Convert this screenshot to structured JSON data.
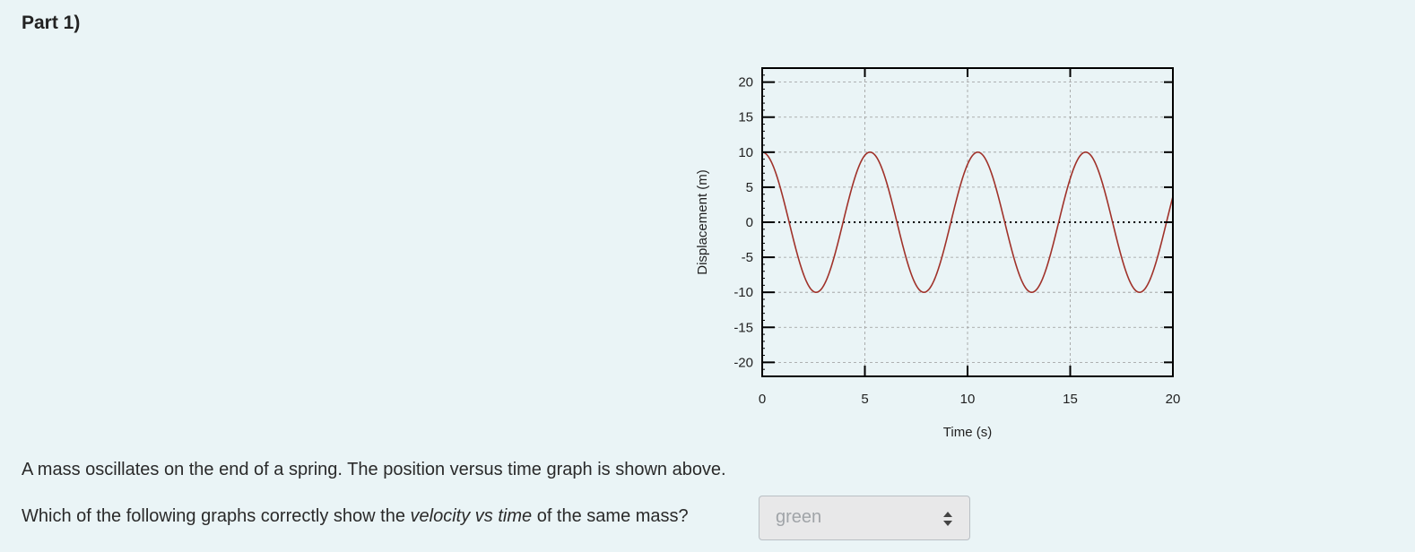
{
  "part": {
    "title": "Part 1)"
  },
  "question": {
    "statement": "A mass oscillates on the end of a spring. The position versus time graph is shown above.",
    "prompt_before": "Which of the following graphs correctly show the ",
    "prompt_emphasis": "velocity vs time",
    "prompt_after": " of the same mass?"
  },
  "select": {
    "value": "green",
    "icon": "updown-arrows-icon"
  },
  "colors": {
    "curve": "#a0322a",
    "grid": "#9a9a9a",
    "zero_line": "#000000",
    "background": "#eaf4f6"
  },
  "chart_data": {
    "type": "line",
    "xlabel": "Time (s)",
    "ylabel": "Displacement (m)",
    "xlim": [
      0,
      20
    ],
    "ylim": [
      -22,
      22
    ],
    "xticks": [
      0,
      5,
      10,
      15,
      20
    ],
    "yticks": [
      20,
      15,
      10,
      5,
      0,
      -5,
      -10,
      -15,
      -20
    ],
    "grid": true,
    "zero_line": true,
    "series": [
      {
        "function": "10*cos(2*pi*t/5.25)",
        "amplitude": 10,
        "period": 5.25
      }
    ]
  }
}
